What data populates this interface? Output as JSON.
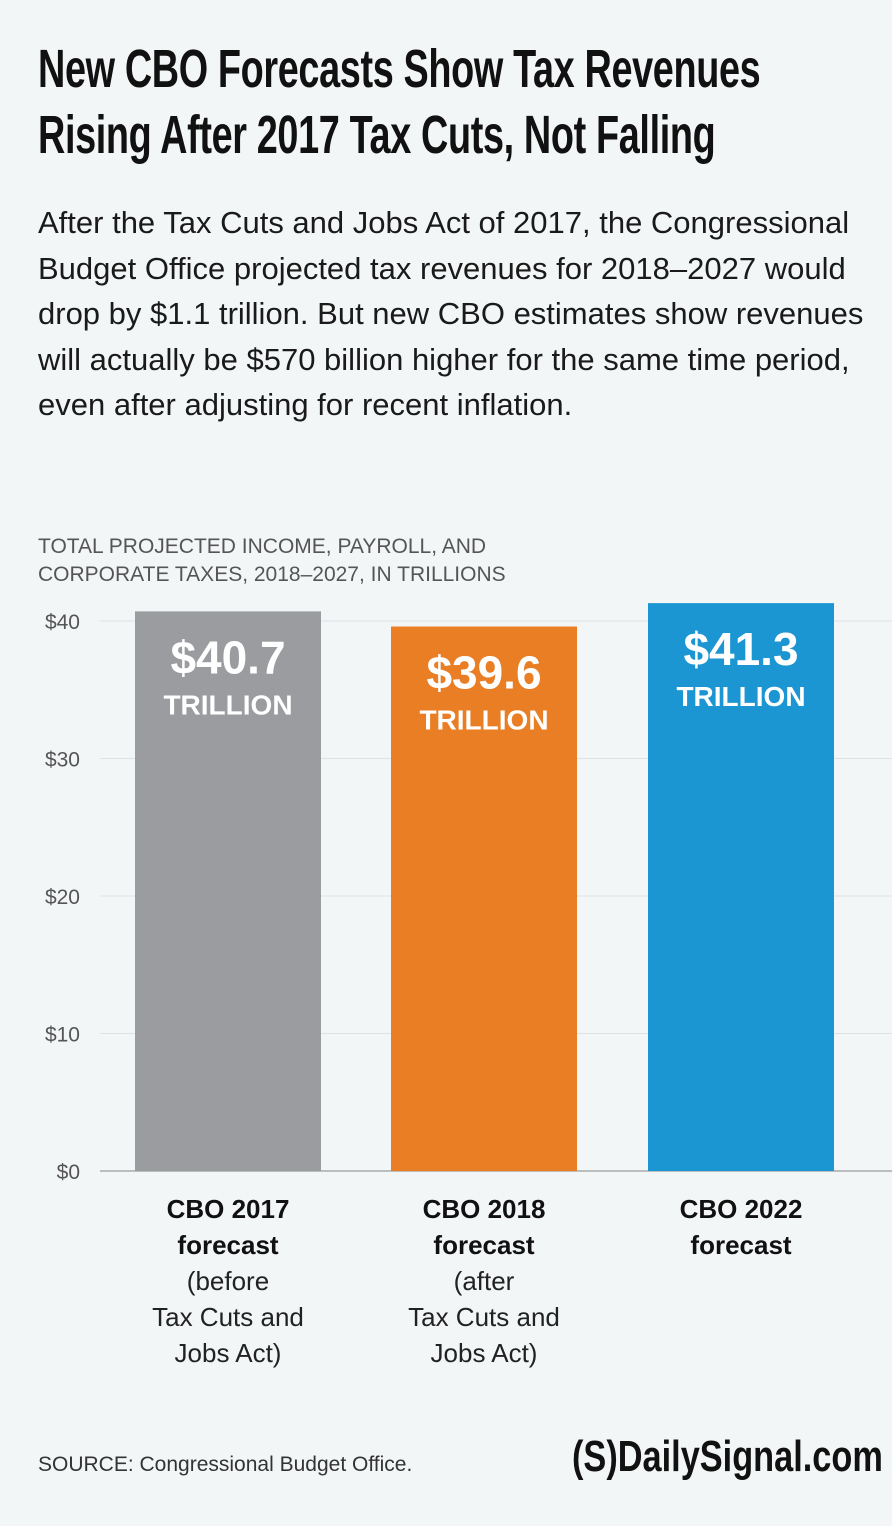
{
  "title_lines": [
    "New CBO Forecasts Show Tax Revenues",
    "Rising After 2017 Tax Cuts, Not Falling"
  ],
  "subtitle": "After the Tax Cuts and Jobs Act of 2017, the Congressional Budget Office projected tax revenues for 2018–2027 would drop by $1.1 trillion. But new CBO estimates show revenues will actually be $570 billion higher for the same time period, even after adjusting for recent inflation.",
  "source": "SOURCE: Congressional Budget Office.",
  "logo": "(S)DailySignal.com",
  "chart_data": {
    "type": "bar",
    "title": "",
    "ylabel": "TOTAL PROJECTED INCOME, PAYROLL, AND CORPORATE TAXES, 2018–2027, IN TRILLIONS",
    "ylim": [
      0,
      40
    ],
    "yticks": [
      0,
      10,
      20,
      30,
      40
    ],
    "ytick_labels": [
      "$0",
      "$10",
      "$20",
      "$30",
      "$40"
    ],
    "grid": true,
    "categories": [
      {
        "bold": [
          "CBO 2017",
          "forecast"
        ],
        "note": [
          "(before",
          "Tax Cuts and",
          "Jobs Act)"
        ]
      },
      {
        "bold": [
          "CBO 2018",
          "forecast"
        ],
        "note": [
          "(after",
          "Tax Cuts and",
          "Jobs Act)"
        ]
      },
      {
        "bold": [
          "CBO 2022",
          "forecast"
        ],
        "note": []
      }
    ],
    "values": [
      40.7,
      39.6,
      41.3
    ],
    "value_labels": [
      "$40.7",
      "$39.6",
      "$41.3"
    ],
    "unit_label": "TRILLION",
    "colors": [
      "#9a9c9f",
      "#e97e24",
      "#1b96d2"
    ]
  }
}
